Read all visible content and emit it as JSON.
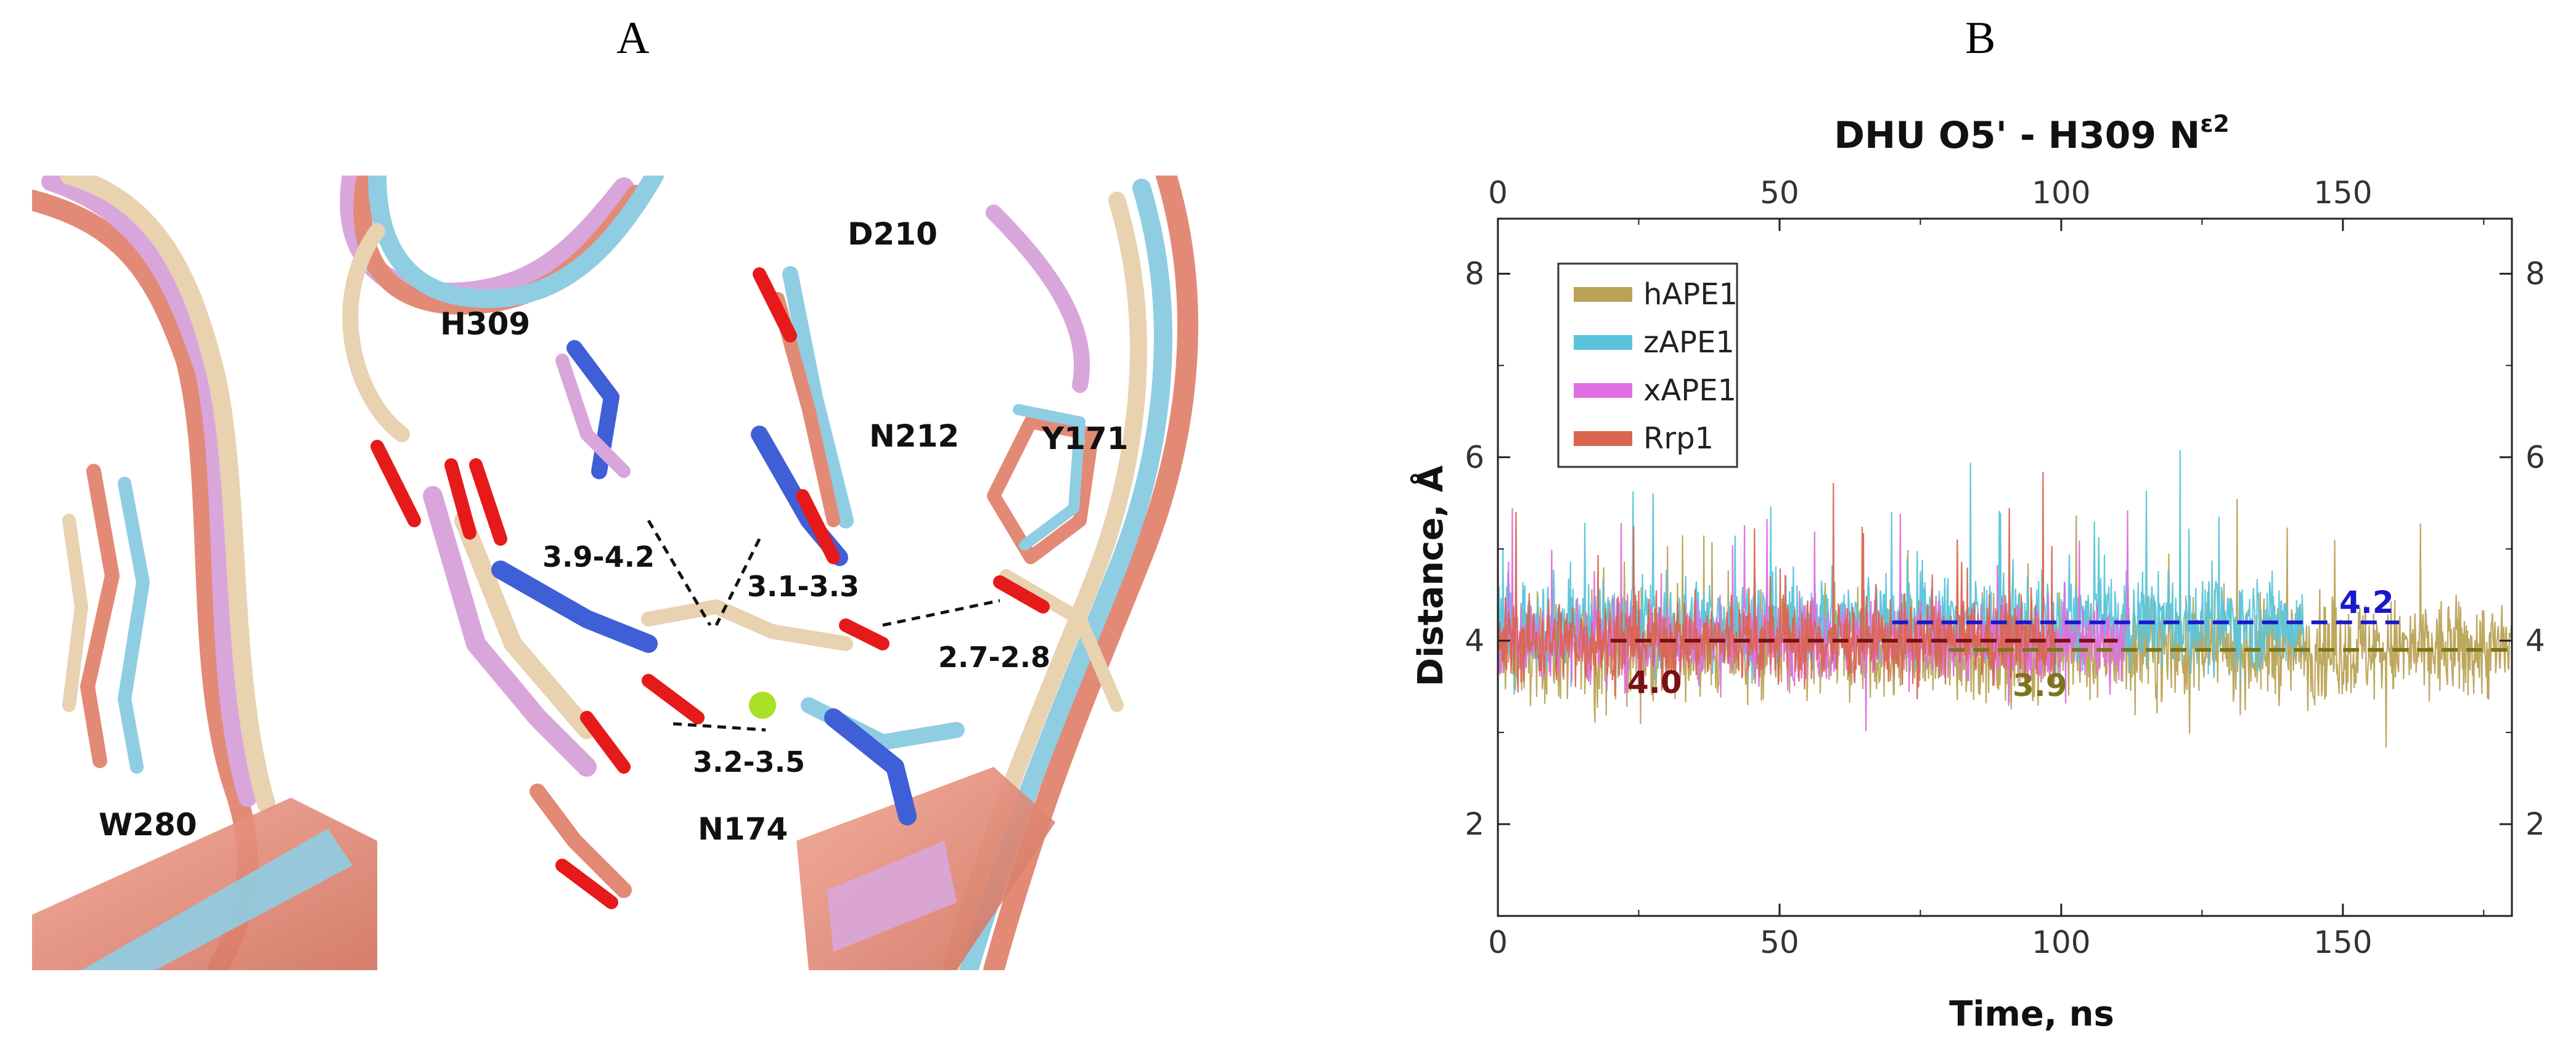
{
  "panels": {
    "a": "A",
    "b": "B"
  },
  "structure": {
    "residues": [
      "D210",
      "H309",
      "N212",
      "Y171",
      "W280",
      "N174"
    ],
    "distances": [
      "3.9-4.2",
      "3.1-3.3",
      "2.7-2.8",
      "3.2-3.5"
    ],
    "colors": {
      "hAPE1": "#e8d2b0",
      "zAPE1": "#8fcde3",
      "xAPE1": "#d9a6dc",
      "Rrp1": "#e38a76"
    }
  },
  "chart_data": {
    "type": "line",
    "title": "DHU O5' - H309 N",
    "title_superscript": "ε2",
    "xlabel": "Time, ns",
    "ylabel": "Distance, Å",
    "xlim": [
      0,
      180
    ],
    "ylim": [
      1,
      8.6
    ],
    "x_ticks": [
      0,
      50,
      100,
      150
    ],
    "y_ticks": [
      2,
      4,
      6,
      8
    ],
    "series": [
      {
        "name": "hAPE1",
        "color": "#bba356",
        "t_end": 180,
        "mean": 3.9,
        "spread": 0.55
      },
      {
        "name": "zAPE1",
        "color": "#5bc4da",
        "t_end": 143,
        "mean": 4.2,
        "spread": 0.5
      },
      {
        "name": "xAPE1",
        "color": "#e06ee0",
        "t_end": 112,
        "mean": 4.0,
        "spread": 0.45
      },
      {
        "name": "Rrp1",
        "color": "#d9654f",
        "t_end": 99,
        "mean": 4.0,
        "spread": 0.45
      }
    ],
    "averages": [
      {
        "name": "hAPE1",
        "value": 3.9,
        "label": "3.9",
        "x_start": 80,
        "x_end": 180,
        "color": "#7c7519"
      },
      {
        "name": "zAPE1",
        "value": 4.2,
        "label": "4.2",
        "x_start": 70,
        "x_end": 160,
        "color": "#1818cc"
      },
      {
        "name": "Rrp1",
        "value": 4.0,
        "label": "4.0",
        "x_start": 20,
        "x_end": 110,
        "color": "#7a0f12"
      }
    ]
  }
}
